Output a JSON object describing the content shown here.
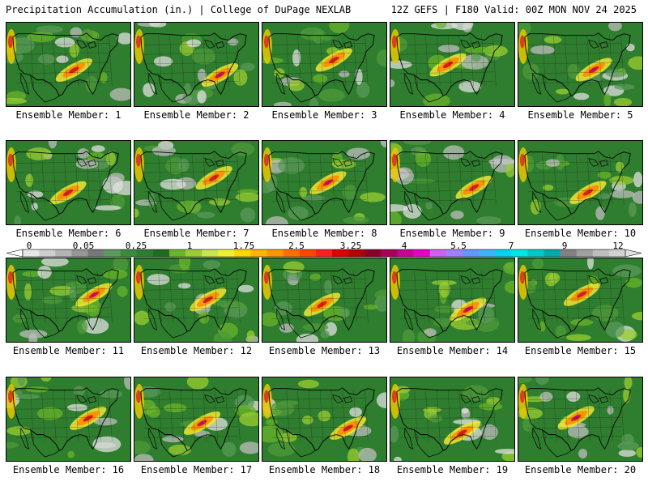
{
  "header": {
    "title": "Precipitation Accumulation (in.) | College of DuPage NEXLAB",
    "run_info": "12Z GEFS | F180 Valid: 00Z MON NOV 24 2025"
  },
  "members": [
    {
      "label": "Ensemble Member: 1"
    },
    {
      "label": "Ensemble Member: 2"
    },
    {
      "label": "Ensemble Member: 3"
    },
    {
      "label": "Ensemble Member: 4"
    },
    {
      "label": "Ensemble Member: 5"
    },
    {
      "label": "Ensemble Member: 6"
    },
    {
      "label": "Ensemble Member: 7"
    },
    {
      "label": "Ensemble Member: 8"
    },
    {
      "label": "Ensemble Member: 9"
    },
    {
      "label": "Ensemble Member: 10"
    },
    {
      "label": "Ensemble Member: 11"
    },
    {
      "label": "Ensemble Member: 12"
    },
    {
      "label": "Ensemble Member: 13"
    },
    {
      "label": "Ensemble Member: 14"
    },
    {
      "label": "Ensemble Member: 15"
    },
    {
      "label": "Ensemble Member: 16"
    },
    {
      "label": "Ensemble Member: 17"
    },
    {
      "label": "Ensemble Member: 18"
    },
    {
      "label": "Ensemble Member: 19"
    },
    {
      "label": "Ensemble Member: 20"
    }
  ],
  "colorbar": {
    "labels": [
      "0",
      "0.05",
      "0.25",
      "1",
      "1.75",
      "2.5",
      "3.25",
      "4",
      "5.5",
      "7",
      "9",
      "12"
    ],
    "colors": [
      "#e6e6e6",
      "#cfcfcf",
      "#b4b4b4",
      "#969696",
      "#787878",
      "#5a9a5a",
      "#3c8a3c",
      "#2e7d2e",
      "#1f6b1f",
      "#6ab42a",
      "#9acd32",
      "#c8e650",
      "#f0f032",
      "#ffd700",
      "#ffb400",
      "#ff9600",
      "#ff6e00",
      "#ff4600",
      "#ff1e1e",
      "#dc0000",
      "#b40000",
      "#8c0028",
      "#aa005a",
      "#c80096",
      "#e600c8",
      "#d060f0",
      "#a080ff",
      "#6496ff",
      "#3cb4ff",
      "#00d2f0",
      "#00e6e6",
      "#00c8c8",
      "#00aaaa",
      "#828282",
      "#a0a0a0",
      "#bebebe",
      "#d2d2d2"
    ]
  }
}
